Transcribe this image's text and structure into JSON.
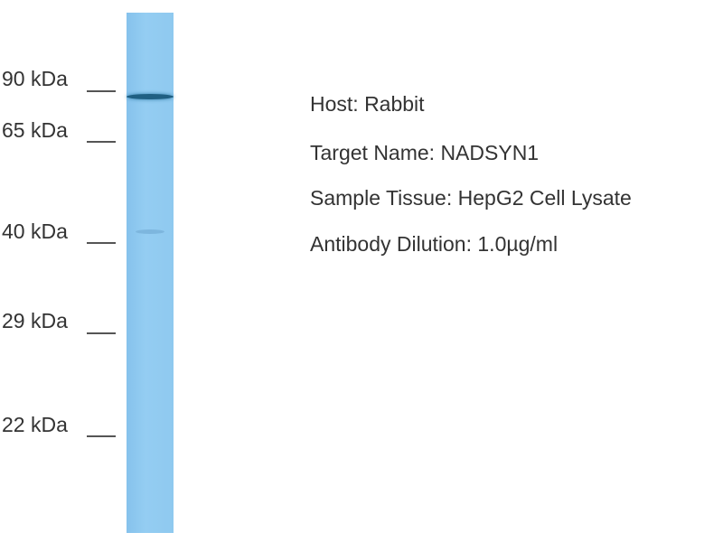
{
  "markers": [
    {
      "label": "90 kDa"
    },
    {
      "label": "65 kDa"
    },
    {
      "label": "40 kDa"
    },
    {
      "label": "29 kDa"
    },
    {
      "label": "22 kDa"
    }
  ],
  "lane": {
    "color": "#8fc9ef",
    "bands": [
      {
        "kda": "~80",
        "intensity": "strong",
        "color": "#1f5f82"
      },
      {
        "kda": "~40",
        "intensity": "faint",
        "color": "#7db6de"
      }
    ]
  },
  "info": [
    "Host: Rabbit",
    "Target Name: NADSYN1",
    "Sample Tissue: HepG2 Cell Lysate",
    "Antibody Dilution: 1.0µg/ml"
  ]
}
